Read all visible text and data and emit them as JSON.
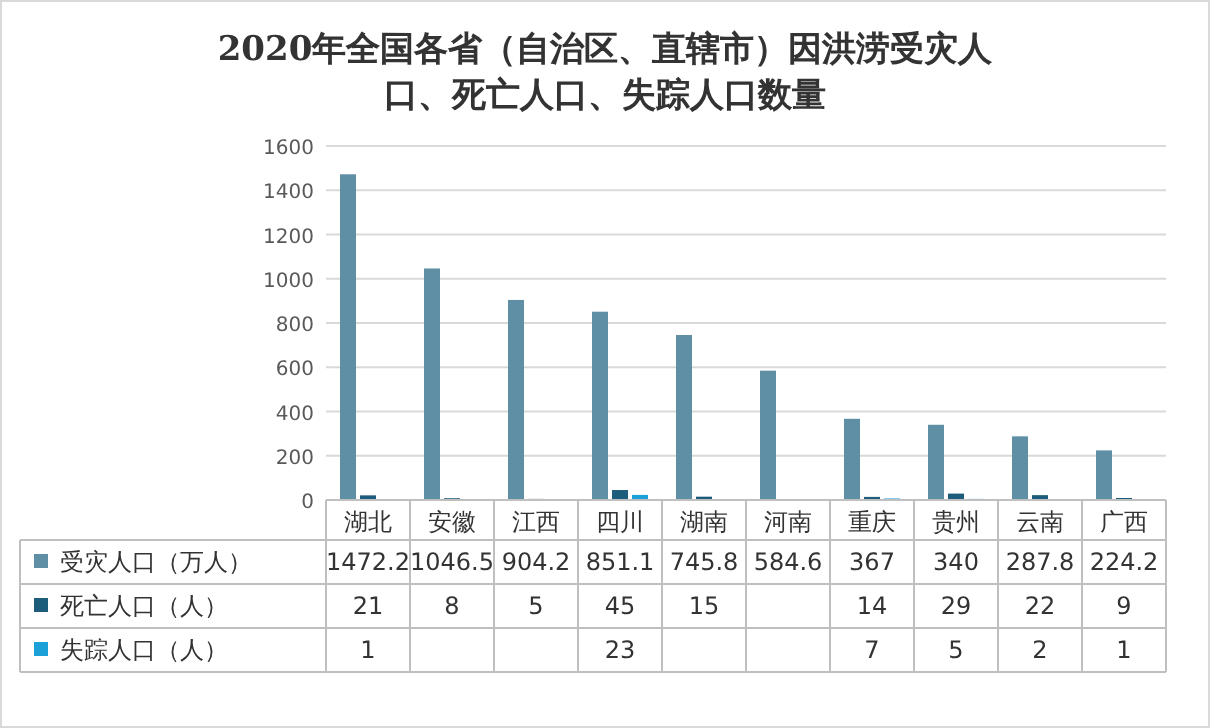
{
  "chart_data": {
    "type": "bar",
    "title": "2020年全国各省（自治区、直辖市）因洪涝受灾人口、死亡人口、失踪人口数量",
    "categories": [
      "湖北",
      "安徽",
      "江西",
      "四川",
      "湖南",
      "河南",
      "重庆",
      "贵州",
      "云南",
      "广西"
    ],
    "series": [
      {
        "name": "受灾人口（万人）",
        "color": "#5f8fa5",
        "values": [
          1472.2,
          1046.5,
          904.2,
          851.1,
          745.8,
          584.6,
          367,
          340,
          287.8,
          224.2
        ]
      },
      {
        "name": "死亡人口（人）",
        "color": "#1d5c7a",
        "values": [
          21,
          8,
          5,
          45,
          15,
          null,
          14,
          29,
          22,
          9
        ]
      },
      {
        "name": "失踪人口（人）",
        "color": "#1ba1d8",
        "values": [
          1,
          null,
          null,
          23,
          null,
          null,
          7,
          5,
          2,
          1
        ]
      }
    ],
    "ylim": [
      0,
      1600
    ],
    "yticks": [
      0,
      200,
      400,
      600,
      800,
      1000,
      1200,
      1400,
      1600
    ],
    "grid": "y",
    "data_labels": true,
    "legend": "bottom"
  }
}
